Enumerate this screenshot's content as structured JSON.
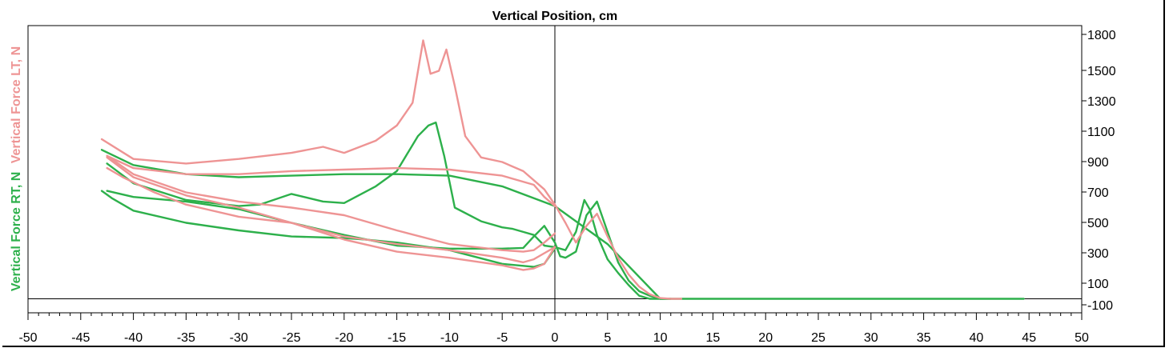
{
  "chart_data": {
    "type": "line",
    "title": "Vertical Position, cm",
    "xlabel": "",
    "ylabel_green": "Vertical Force RT, N",
    "ylabel_red": "Vertical Force LT, N",
    "xlim": [
      -50,
      50
    ],
    "ylim": [
      -100,
      1800
    ],
    "x_ticks": [
      -50,
      -45,
      -40,
      -35,
      -30,
      -25,
      -20,
      -15,
      -10,
      -5,
      0,
      5,
      10,
      15,
      20,
      25,
      30,
      35,
      40,
      45,
      50
    ],
    "x_tick_labels": [
      "-50",
      "-45",
      "-40",
      "-35",
      "-30",
      "-25",
      "-20",
      "-15",
      "-10",
      "-5",
      "0",
      "5",
      "10",
      "15",
      "20",
      "25",
      "30",
      "35",
      "40",
      "45",
      "50"
    ],
    "y_ticks": [
      1800,
      1500,
      1300,
      1100,
      900,
      700,
      500,
      300,
      100,
      -100
    ],
    "y_tick_labels": [
      "1800",
      "1500",
      "1300",
      "1100",
      "900",
      "700",
      "500",
      "300",
      "100",
      "-100"
    ],
    "grid": false,
    "colors": {
      "green": "#2db04b",
      "red": "#ee9494"
    },
    "series": [
      {
        "color": "green",
        "x": [
          -43,
          -40,
          -35,
          -30,
          -25,
          -20,
          -15,
          -10,
          -5,
          0,
          5,
          10,
          20,
          30,
          44.5
        ],
        "y": [
          1040,
          940,
          880,
          860,
          870,
          880,
          880,
          870,
          800,
          670,
          420,
          60,
          60,
          60,
          60
        ]
      },
      {
        "color": "green",
        "x": [
          -42.5,
          -40,
          -35,
          -30,
          -28,
          -25,
          -22,
          -20,
          -17,
          -15,
          -13,
          -12,
          -11.3,
          -10.5,
          -9.5,
          -7,
          -5,
          -4,
          -3,
          -2,
          -1,
          0,
          1,
          2,
          2.8,
          3.3,
          4,
          5,
          6,
          7,
          8,
          9,
          10
        ],
        "y": [
          950,
          820,
          710,
          670,
          680,
          750,
          700,
          690,
          800,
          900,
          1130,
          1200,
          1220,
          1000,
          660,
          570,
          530,
          520,
          500,
          480,
          410,
          400,
          380,
          500,
          710,
          650,
          480,
          320,
          230,
          150,
          80,
          60,
          60
        ]
      },
      {
        "color": "green",
        "x": [
          -42.5,
          -40,
          -35,
          -30,
          -25,
          -20,
          -15,
          -10,
          -5,
          -3,
          -2,
          -1,
          0,
          0.5,
          1,
          2,
          3,
          4,
          5,
          6,
          7,
          8,
          9,
          10,
          11
        ],
        "y": [
          770,
          730,
          700,
          650,
          560,
          480,
          410,
          390,
          390,
          395,
          470,
          540,
          430,
          340,
          330,
          370,
          610,
          700,
          500,
          300,
          180,
          110,
          80,
          60,
          60
        ]
      },
      {
        "color": "green",
        "x": [
          -43,
          -42,
          -40,
          -35,
          -30,
          -25,
          -20,
          -18,
          -15,
          -10,
          -5,
          -2,
          -1,
          0
        ],
        "y": [
          770,
          720,
          640,
          560,
          510,
          470,
          460,
          450,
          430,
          380,
          290,
          270,
          290,
          390
        ]
      },
      {
        "color": "red",
        "x": [
          -43,
          -40,
          -35,
          -30,
          -25,
          -22,
          -20,
          -17,
          -15,
          -14,
          -13.5,
          -12.5,
          -11.8,
          -11,
          -10.3,
          -9.5,
          -8.5,
          -7,
          -5,
          -3,
          -1,
          0,
          1,
          2,
          3,
          4,
          5,
          6,
          7,
          8,
          9,
          10,
          11,
          12
        ],
        "y": [
          1110,
          980,
          950,
          980,
          1020,
          1060,
          1020,
          1100,
          1200,
          1300,
          1350,
          1760,
          1540,
          1560,
          1700,
          1460,
          1130,
          990,
          960,
          900,
          780,
          680,
          560,
          430,
          540,
          620,
          470,
          330,
          220,
          140,
          90,
          65,
          60,
          60
        ]
      },
      {
        "color": "red",
        "x": [
          -42.5,
          -40,
          -35,
          -30,
          -25,
          -20,
          -15,
          -10,
          -5,
          -2,
          -1,
          0
        ],
        "y": [
          1000,
          920,
          880,
          880,
          900,
          910,
          920,
          910,
          870,
          810,
          730,
          670
        ]
      },
      {
        "color": "red",
        "x": [
          -42.5,
          -40,
          -35,
          -30,
          -25,
          -20,
          -15,
          -10,
          -5,
          -3,
          -2,
          -1,
          0
        ],
        "y": [
          1000,
          880,
          760,
          700,
          660,
          610,
          510,
          420,
          380,
          370,
          380,
          430,
          490
        ]
      },
      {
        "color": "red",
        "x": [
          -42.5,
          -40,
          -35,
          -30,
          -25,
          -20,
          -15,
          -10,
          -5,
          -3,
          -2,
          -1,
          0
        ],
        "y": [
          990,
          860,
          740,
          660,
          560,
          450,
          370,
          330,
          280,
          250,
          260,
          290,
          400
        ]
      },
      {
        "color": "red",
        "x": [
          -42.5,
          -41,
          -38,
          -35,
          -30,
          -25,
          -20,
          -15,
          -10,
          -5,
          -3,
          -2,
          -1,
          0
        ],
        "y": [
          920,
          860,
          760,
          680,
          600,
          560,
          470,
          420,
          380,
          330,
          300,
          320,
          360,
          400
        ]
      }
    ]
  }
}
